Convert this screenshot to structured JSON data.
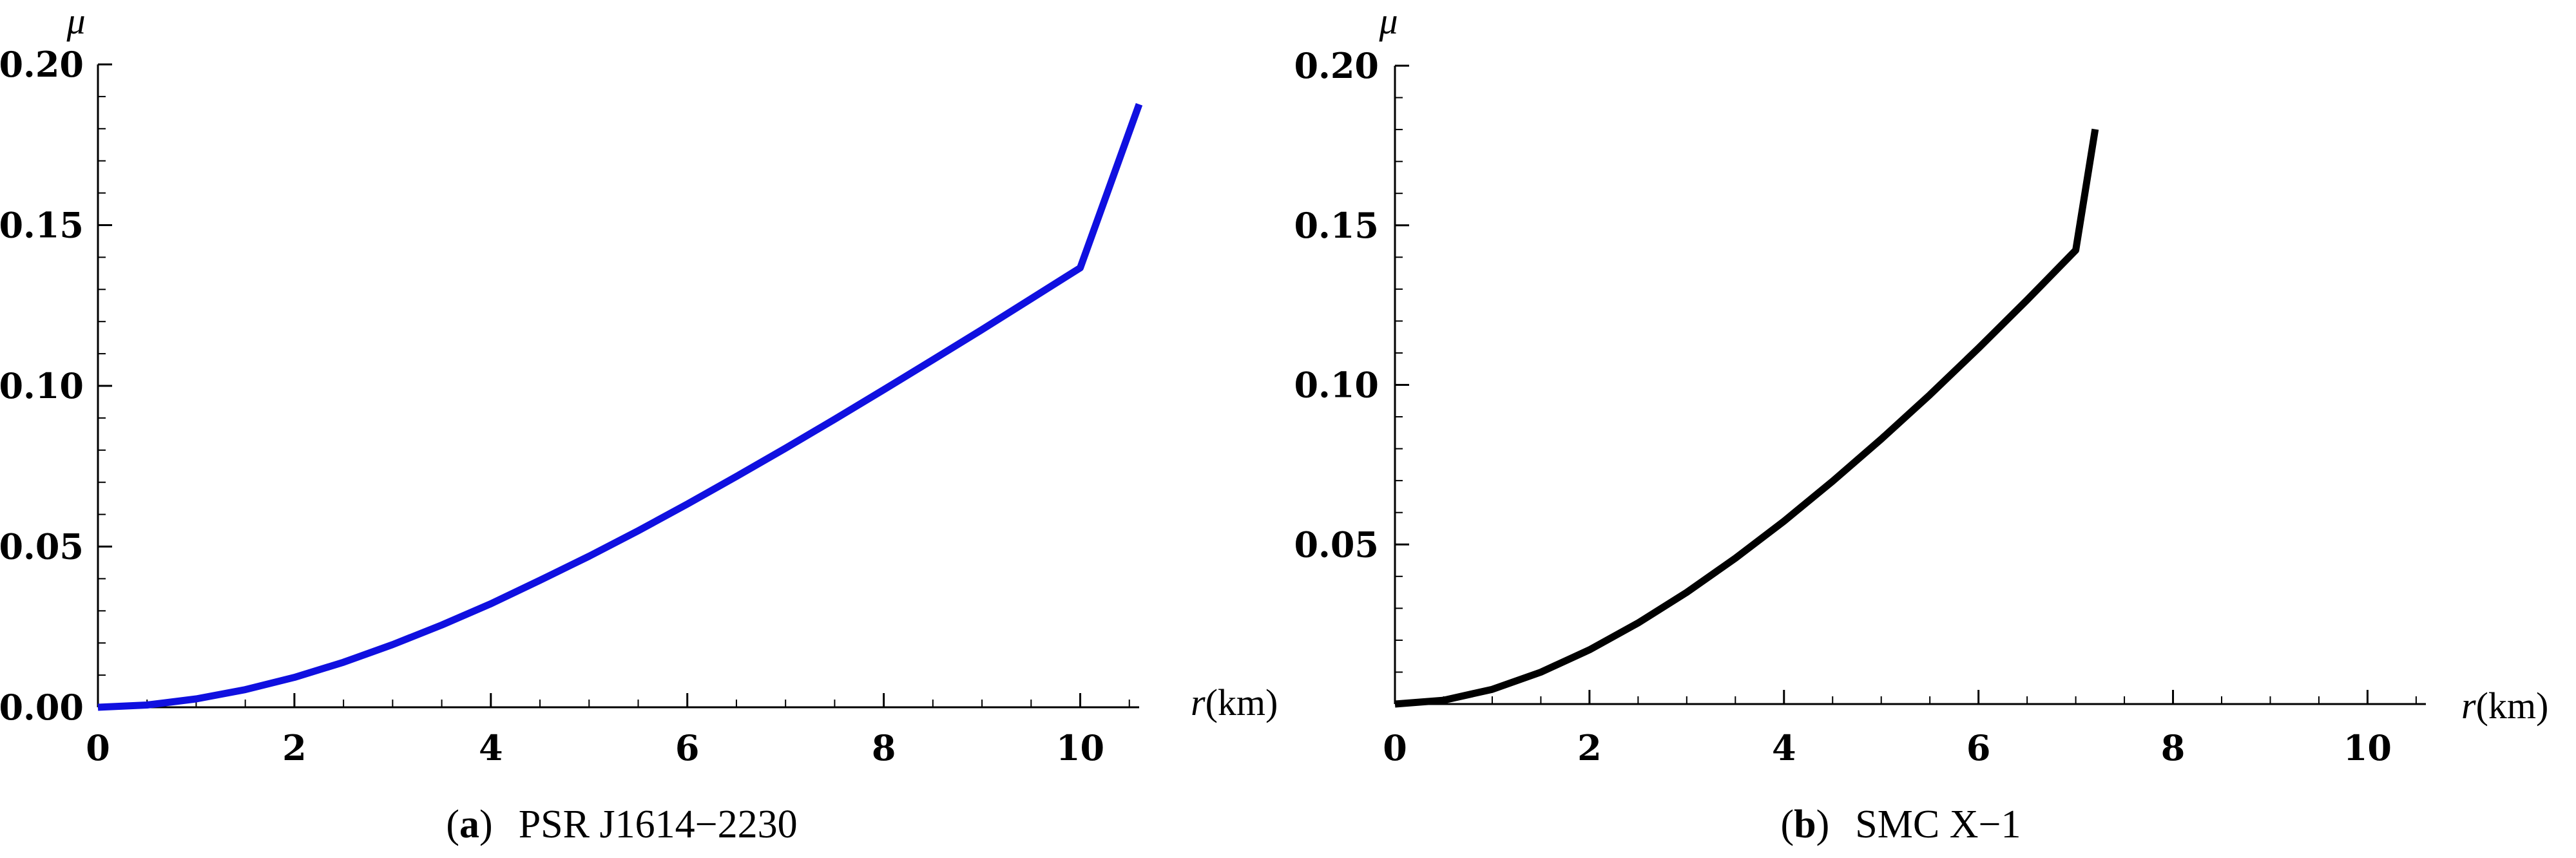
{
  "chart_data": [
    {
      "type": "line",
      "panel_letter": "a",
      "title": "PSR J1614−2230",
      "xlabel_var": "r",
      "xlabel_unit": "(km)",
      "ylabel": "μ",
      "xlim": [
        0,
        10.6
      ],
      "ylim": [
        0,
        0.2
      ],
      "xticks": [
        0,
        2,
        4,
        6,
        8,
        10
      ],
      "xtick_labels": [
        "0",
        "2",
        "4",
        "6",
        "8",
        "10"
      ],
      "yticks": [
        0,
        0.05,
        0.1,
        0.15,
        0.2
      ],
      "ytick_labels": [
        "0.00",
        "0.05",
        "0.10",
        "0.15",
        "0.20"
      ],
      "series": [
        {
          "color": "#1010e0",
          "x": [
            0,
            0.5,
            1,
            1.5,
            2,
            2.5,
            3,
            3.5,
            4,
            4.5,
            5,
            5.5,
            6,
            6.5,
            7,
            7.5,
            8,
            8.5,
            9,
            9.5,
            10,
            10.6
          ],
          "y": [
            0,
            0.0007,
            0.0026,
            0.0055,
            0.0093,
            0.014,
            0.0195,
            0.0256,
            0.0322,
            0.0395,
            0.047,
            0.0549,
            0.0632,
            0.0718,
            0.0806,
            0.0896,
            0.0988,
            0.1081,
            0.1175,
            0.1271,
            0.1367,
            0.1876
          ]
        }
      ]
    },
    {
      "type": "line",
      "panel_letter": "b",
      "title": "SMC X−1",
      "xlabel_var": "r",
      "xlabel_unit": "(km)",
      "ylabel": "μ",
      "xlim": [
        0,
        10.6
      ],
      "ylim": [
        0,
        0.2
      ],
      "xticks": [
        0,
        2,
        4,
        6,
        8,
        10
      ],
      "xtick_labels": [
        "0",
        "2",
        "4",
        "6",
        "8",
        "10"
      ],
      "yticks": [
        0.05,
        0.1,
        0.15,
        0.2
      ],
      "ytick_labels": [
        "0.05",
        "0.10",
        "0.15",
        "0.20"
      ],
      "series": [
        {
          "color": "#000000",
          "x": [
            0,
            0.5,
            1,
            1.5,
            2,
            2.5,
            3,
            3.5,
            4,
            4.5,
            5,
            5.5,
            6,
            6.5,
            7,
            7.2
          ],
          "y": [
            0,
            0.0012,
            0.0046,
            0.01,
            0.017,
            0.0254,
            0.035,
            0.0457,
            0.0573,
            0.0698,
            0.083,
            0.0969,
            0.1115,
            0.1266,
            0.1422,
            0.1801
          ]
        }
      ]
    }
  ]
}
